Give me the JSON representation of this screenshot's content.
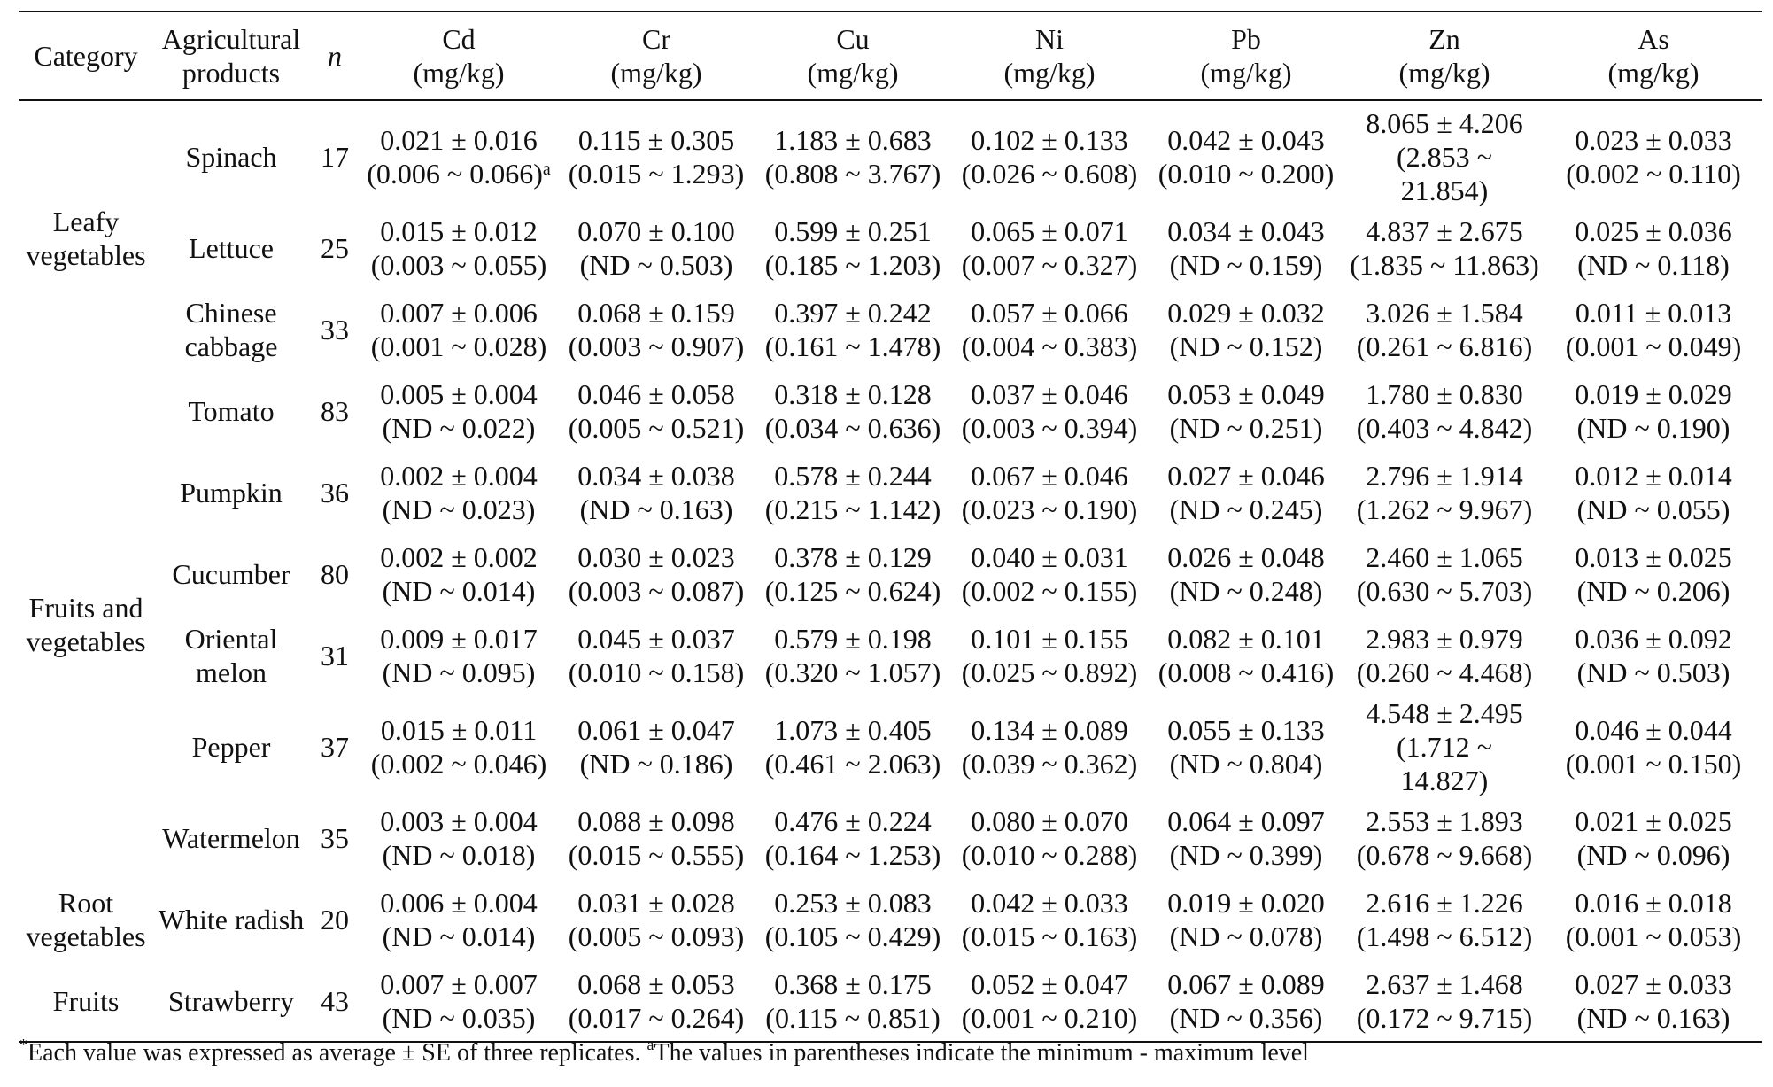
{
  "table": {
    "headers": {
      "category": "Category",
      "product": [
        "Agricultural",
        "products"
      ],
      "n": "n",
      "elements": [
        {
          "symbol": "Cd",
          "unit": "(mg/kg)"
        },
        {
          "symbol": "Cr",
          "unit": "(mg/kg)"
        },
        {
          "symbol": "Cu",
          "unit": "(mg/kg)"
        },
        {
          "symbol": "Ni",
          "unit": "(mg/kg)"
        },
        {
          "symbol": "Pb",
          "unit": "(mg/kg)"
        },
        {
          "symbol": "Zn",
          "unit": "(mg/kg)"
        },
        {
          "symbol": "As",
          "unit": "(mg/kg)"
        }
      ]
    },
    "categories": {
      "leafy": [
        "Leafy",
        "vegetables"
      ],
      "fruit_veg": [
        "Fruits and",
        "vegetables"
      ],
      "root": [
        "Root",
        "vegetables"
      ],
      "fruits": [
        "Fruits"
      ]
    },
    "rows": [
      {
        "product": [
          "Spinach"
        ],
        "n": "17",
        "cd": [
          "0.021 ± 0.016",
          "(0.006 ~ 0.066)"
        ],
        "cd_sup": "a",
        "cr": [
          "0.115 ± 0.305",
          "(0.015 ~ 1.293)"
        ],
        "cu": [
          "1.183 ± 0.683",
          "(0.808 ~ 3.767)"
        ],
        "ni": [
          "0.102 ± 0.133",
          "(0.026 ~ 0.608)"
        ],
        "pb": [
          "0.042 ± 0.043",
          "(0.010 ~ 0.200)"
        ],
        "zn": [
          "8.065 ± 4.206",
          "(2.853 ~",
          "21.854)"
        ],
        "as": [
          "0.023 ± 0.033",
          "(0.002 ~ 0.110)"
        ]
      },
      {
        "product": [
          "Lettuce"
        ],
        "n": "25",
        "cd": [
          "0.015 ± 0.012",
          "(0.003 ~ 0.055)"
        ],
        "cr": [
          "0.070 ± 0.100",
          "(ND ~ 0.503)"
        ],
        "cu": [
          "0.599 ± 0.251",
          "(0.185 ~ 1.203)"
        ],
        "ni": [
          "0.065 ± 0.071",
          "(0.007 ~ 0.327)"
        ],
        "pb": [
          "0.034 ± 0.043",
          "(ND ~ 0.159)"
        ],
        "zn": [
          "4.837 ± 2.675",
          "(1.835 ~ 11.863)"
        ],
        "as": [
          "0.025 ± 0.036",
          "(ND ~ 0.118)"
        ]
      },
      {
        "product": [
          "Chinese",
          "cabbage"
        ],
        "n": "33",
        "cd": [
          "0.007 ± 0.006",
          "(0.001 ~ 0.028)"
        ],
        "cr": [
          "0.068 ± 0.159",
          "(0.003 ~ 0.907)"
        ],
        "cu": [
          "0.397 ± 0.242",
          "(0.161 ~ 1.478)"
        ],
        "ni": [
          "0.057 ± 0.066",
          "(0.004 ~ 0.383)"
        ],
        "pb": [
          "0.029 ± 0.032",
          "(ND ~ 0.152)"
        ],
        "zn": [
          "3.026 ± 1.584",
          "(0.261 ~ 6.816)"
        ],
        "as": [
          "0.011 ± 0.013",
          "(0.001 ~ 0.049)"
        ]
      },
      {
        "product": [
          "Tomato"
        ],
        "n": "83",
        "cd": [
          "0.005 ± 0.004",
          "(ND ~ 0.022)"
        ],
        "cr": [
          "0.046 ± 0.058",
          "(0.005 ~ 0.521)"
        ],
        "cu": [
          "0.318 ± 0.128",
          "(0.034 ~ 0.636)"
        ],
        "ni": [
          "0.037 ± 0.046",
          "(0.003 ~ 0.394)"
        ],
        "pb": [
          "0.053 ± 0.049",
          "(ND ~ 0.251)"
        ],
        "zn": [
          "1.780 ± 0.830",
          "(0.403 ~ 4.842)"
        ],
        "as": [
          "0.019 ± 0.029",
          "(ND ~ 0.190)"
        ]
      },
      {
        "product": [
          "Pumpkin"
        ],
        "n": "36",
        "cd": [
          "0.002 ± 0.004",
          "(ND ~ 0.023)"
        ],
        "cr": [
          "0.034 ± 0.038",
          "(ND ~ 0.163)"
        ],
        "cu": [
          "0.578 ± 0.244",
          "(0.215 ~ 1.142)"
        ],
        "ni": [
          "0.067 ± 0.046",
          "(0.023 ~ 0.190)"
        ],
        "pb": [
          "0.027 ± 0.046",
          "(ND ~ 0.245)"
        ],
        "zn": [
          "2.796 ± 1.914",
          "(1.262 ~ 9.967)"
        ],
        "as": [
          "0.012 ± 0.014",
          "(ND ~ 0.055)"
        ]
      },
      {
        "product": [
          "Cucumber"
        ],
        "n": "80",
        "cd": [
          "0.002 ± 0.002",
          "(ND ~ 0.014)"
        ],
        "cr": [
          "0.030 ± 0.023",
          "(0.003 ~ 0.087)"
        ],
        "cu": [
          "0.378 ± 0.129",
          "(0.125 ~ 0.624)"
        ],
        "ni": [
          "0.040 ± 0.031",
          "(0.002 ~ 0.155)"
        ],
        "pb": [
          "0.026 ± 0.048",
          "(ND ~ 0.248)"
        ],
        "zn": [
          "2.460 ± 1.065",
          "(0.630 ~ 5.703)"
        ],
        "as": [
          "0.013 ± 0.025",
          "(ND ~ 0.206)"
        ]
      },
      {
        "product": [
          "Oriental",
          "melon"
        ],
        "n": "31",
        "cd": [
          "0.009 ± 0.017",
          "(ND ~ 0.095)"
        ],
        "cr": [
          "0.045 ± 0.037",
          "(0.010 ~ 0.158)"
        ],
        "cu": [
          "0.579 ± 0.198",
          "(0.320 ~ 1.057)"
        ],
        "ni": [
          "0.101 ± 0.155",
          "(0.025 ~ 0.892)"
        ],
        "pb": [
          "0.082 ± 0.101",
          "(0.008 ~ 0.416)"
        ],
        "zn": [
          "2.983 ± 0.979",
          "(0.260 ~ 4.468)"
        ],
        "as": [
          "0.036 ± 0.092",
          "(ND ~ 0.503)"
        ]
      },
      {
        "product": [
          "Pepper"
        ],
        "n": "37",
        "cd": [
          "0.015 ± 0.011",
          "(0.002 ~ 0.046)"
        ],
        "cr": [
          "0.061 ± 0.047",
          "(ND ~ 0.186)"
        ],
        "cu": [
          "1.073 ± 0.405",
          "(0.461 ~ 2.063)"
        ],
        "ni": [
          "0.134 ± 0.089",
          "(0.039 ~ 0.362)"
        ],
        "pb": [
          "0.055 ± 0.133",
          "(ND ~ 0.804)"
        ],
        "zn": [
          "4.548 ± 2.495",
          "(1.712 ~",
          "14.827)"
        ],
        "as": [
          "0.046 ± 0.044",
          "(0.001 ~ 0.150)"
        ]
      },
      {
        "product": [
          "Watermelon"
        ],
        "n": "35",
        "cd": [
          "0.003 ± 0.004",
          "(ND ~ 0.018)"
        ],
        "cr": [
          "0.088 ± 0.098",
          "(0.015 ~ 0.555)"
        ],
        "cu": [
          "0.476 ± 0.224",
          "(0.164 ~ 1.253)"
        ],
        "ni": [
          "0.080 ± 0.070",
          "(0.010 ~ 0.288)"
        ],
        "pb": [
          "0.064 ± 0.097",
          "(ND ~ 0.399)"
        ],
        "zn": [
          "2.553 ± 1.893",
          "(0.678 ~ 9.668)"
        ],
        "as": [
          "0.021 ± 0.025",
          "(ND ~ 0.096)"
        ]
      },
      {
        "product": [
          "White radish"
        ],
        "n": "20",
        "cd": [
          "0.006 ± 0.004",
          "(ND ~ 0.014)"
        ],
        "cr": [
          "0.031 ± 0.028",
          "(0.005 ~ 0.093)"
        ],
        "cu": [
          "0.253 ± 0.083",
          "(0.105 ~ 0.429)"
        ],
        "ni": [
          "0.042 ± 0.033",
          "(0.015 ~ 0.163)"
        ],
        "pb": [
          "0.019 ± 0.020",
          "(ND ~ 0.078)"
        ],
        "zn": [
          "2.616 ± 1.226",
          "(1.498 ~ 6.512)"
        ],
        "as": [
          "0.016 ± 0.018",
          "(0.001 ~ 0.053)"
        ]
      },
      {
        "product": [
          "Strawberry"
        ],
        "n": "43",
        "cd": [
          "0.007 ± 0.007",
          "(ND ~ 0.035)"
        ],
        "cr": [
          "0.068 ± 0.053",
          "(0.017 ~ 0.264)"
        ],
        "cu": [
          "0.368 ± 0.175",
          "(0.115 ~ 0.851)"
        ],
        "ni": [
          "0.052 ± 0.047",
          "(0.001 ~ 0.210)"
        ],
        "pb": [
          "0.067 ± 0.089",
          "(ND ~ 0.356)"
        ],
        "zn": [
          "2.637 ± 1.468",
          "(0.172 ~ 9.715)"
        ],
        "as": [
          "0.027 ± 0.033",
          "(ND ~ 0.163)"
        ]
      }
    ]
  },
  "footnote": {
    "sup1": "*",
    "text1": "Each value was expressed as average ± SE of three replicates. ",
    "sup2": "a",
    "text2": "The values in parentheses indicate the minimum - maximum level"
  }
}
